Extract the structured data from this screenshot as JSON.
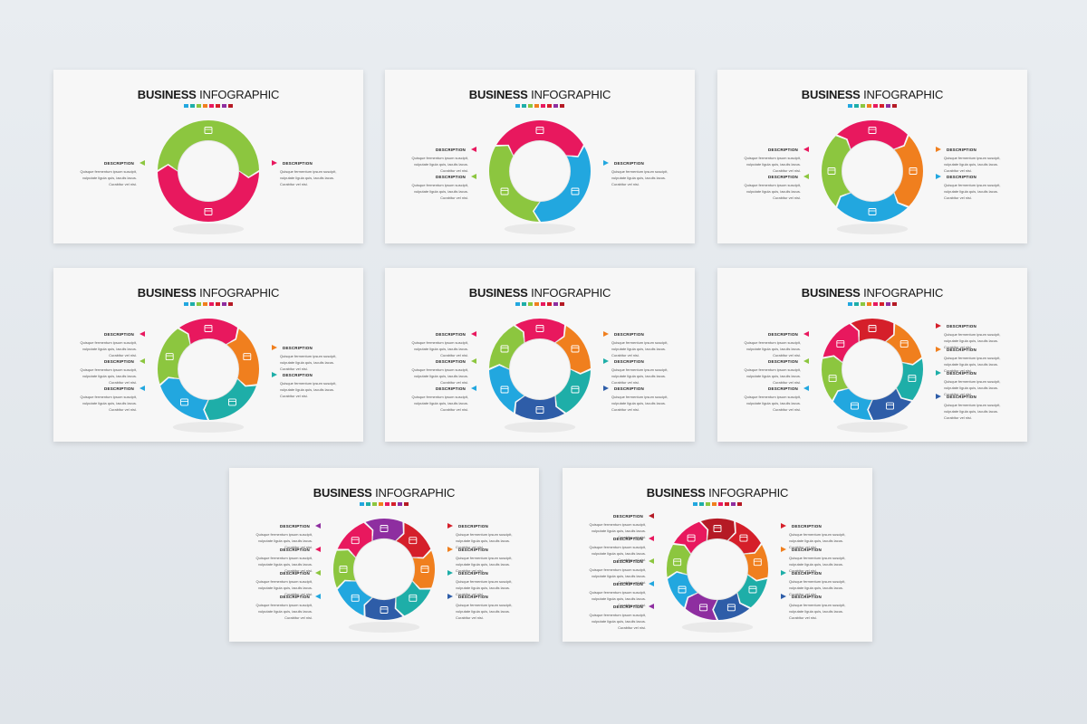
{
  "title_bold": "BUSINESS",
  "title_regular": "INFOGRAPHIC",
  "desc_label": "DESCRIPTION",
  "body_lines": [
    "Quisque fermentum ipsum suscipit,",
    "vulputate ligula quis, iaculis lacus.",
    "Curabitur vel nisi."
  ],
  "palette": {
    "green": "#8cc63f",
    "pink": "#e8185e",
    "blue": "#22a7df",
    "orange": "#f07f1e",
    "teal": "#1eaea8",
    "navy": "#2e5da8",
    "red": "#d51f2a",
    "purple": "#8e2ea0",
    "darkred": "#b51a25"
  },
  "slides": [
    {
      "segments": [
        "green",
        "pink"
      ],
      "icons": [
        "bank-icon",
        "diamond-icon"
      ],
      "left": [
        "green"
      ],
      "right": [
        "pink"
      ]
    },
    {
      "segments": [
        "pink",
        "blue",
        "green"
      ],
      "icons": [
        "grid-icon",
        "diamond-icon",
        "bank-icon"
      ],
      "left": [
        "pink",
        "green"
      ],
      "right": [
        "blue"
      ]
    },
    {
      "segments": [
        "pink",
        "orange",
        "blue",
        "green"
      ],
      "icons": [
        "grid-icon",
        "bank-icon",
        "bank-icon",
        "table-icon"
      ],
      "left": [
        "pink",
        "green"
      ],
      "right": [
        "orange",
        "blue"
      ]
    },
    {
      "segments": [
        "pink",
        "orange",
        "teal",
        "blue",
        "green"
      ],
      "icons": [
        "grid-icon",
        "box-icon",
        "box-icon",
        "chart-icon",
        "bank-icon"
      ],
      "left": [
        "pink",
        "green",
        "blue"
      ],
      "right": [
        "orange",
        "teal"
      ]
    },
    {
      "segments": [
        "pink",
        "orange",
        "teal",
        "navy",
        "blue",
        "green"
      ],
      "icons": [
        "grid-icon",
        "home-icon",
        "box-icon",
        "chart-icon",
        "bank-icon",
        "table-icon"
      ],
      "left": [
        "pink",
        "green",
        "blue"
      ],
      "right": [
        "orange",
        "teal",
        "navy"
      ]
    },
    {
      "segments": [
        "red",
        "orange",
        "teal",
        "navy",
        "blue",
        "green",
        "pink"
      ],
      "icons": [
        "box-icon",
        "home-icon",
        "box-icon",
        "lock-icon",
        "table-icon",
        "chart-icon",
        "grid-icon"
      ],
      "left": [
        "pink",
        "green",
        "blue"
      ],
      "right": [
        "red",
        "orange",
        "teal",
        "navy"
      ]
    },
    {
      "segments": [
        "purple",
        "red",
        "orange",
        "teal",
        "navy",
        "blue",
        "green",
        "pink"
      ],
      "icons": [
        "grid-icon",
        "clock-icon",
        "box-icon",
        "chart-icon",
        "lock-icon",
        "home-icon",
        "table-icon",
        "box-icon"
      ],
      "left": [
        "purple",
        "pink",
        "green",
        "blue"
      ],
      "right": [
        "red",
        "orange",
        "teal",
        "navy"
      ]
    },
    {
      "segments": [
        "darkred",
        "red",
        "orange",
        "teal",
        "navy",
        "purple",
        "blue",
        "green",
        "pink"
      ],
      "icons": [
        "grid-icon",
        "box-icon",
        "clock-icon",
        "chart-icon",
        "lock-icon",
        "home-icon",
        "table-icon",
        "box-icon",
        "grid-icon"
      ],
      "left": [
        "darkred",
        "pink",
        "green",
        "blue",
        "purple"
      ],
      "right": [
        "red",
        "orange",
        "teal",
        "navy"
      ]
    }
  ]
}
